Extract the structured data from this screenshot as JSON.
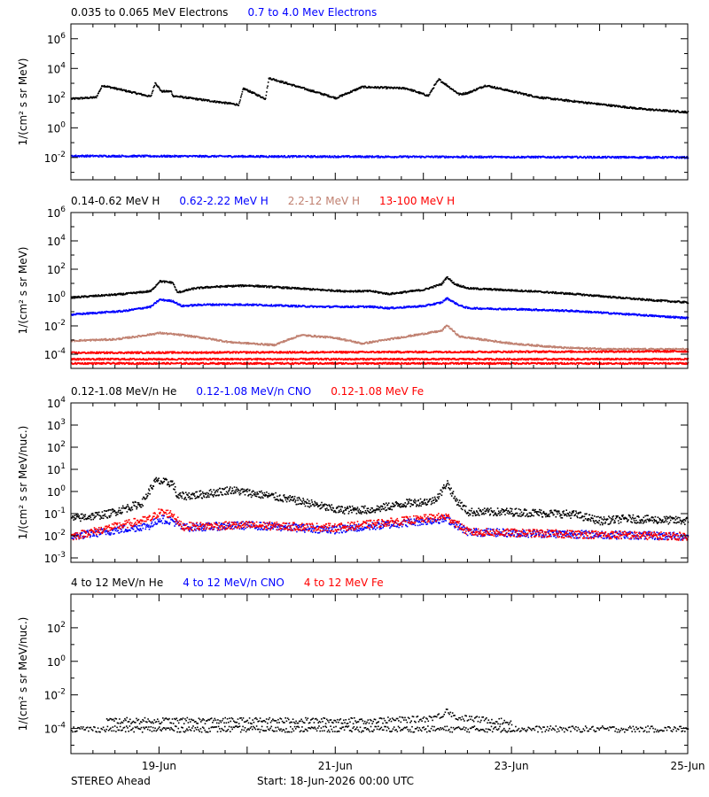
{
  "footer": {
    "spacecraft": "STEREO Ahead",
    "start": "Start: 18-Jun-2026 00:00 UTC"
  },
  "chart_data": [
    {
      "type": "scatter",
      "ylabel": "1/(cm² s sr MeV)",
      "yscale": "log",
      "ylim_exp": [
        -3.5,
        7
      ],
      "ytick_exps": [
        -2,
        0,
        2,
        4,
        6
      ],
      "x_days": [
        0,
        7
      ],
      "legend": [
        {
          "label": "0.035 to 0.065 MeV Electrons",
          "color": "#000000"
        },
        {
          "label": "0.7 to 4.0 Mev Electrons",
          "color": "#0000ff"
        }
      ],
      "series": [
        {
          "color": "#000000",
          "profile": [
            [
              0,
              2.0
            ],
            [
              0.28,
              2.1
            ],
            [
              0.35,
              2.9
            ],
            [
              0.9,
              2.15
            ],
            [
              0.95,
              3.1
            ],
            [
              1.02,
              2.5
            ],
            [
              1.13,
              2.5
            ],
            [
              1.15,
              2.2
            ],
            [
              1.9,
              1.6
            ],
            [
              1.95,
              2.7
            ],
            [
              2.2,
              2.0
            ],
            [
              2.24,
              3.4
            ],
            [
              3.0,
              2.05
            ],
            [
              3.3,
              2.8
            ],
            [
              3.8,
              2.7
            ],
            [
              4.05,
              2.2
            ],
            [
              4.12,
              2.9
            ],
            [
              4.17,
              3.3
            ],
            [
              4.4,
              2.3
            ],
            [
              4.5,
              2.4
            ],
            [
              4.7,
              2.9
            ],
            [
              5.3,
              2.1
            ],
            [
              6.2,
              1.5
            ],
            [
              6.5,
              1.3
            ],
            [
              7,
              1.1
            ]
          ]
        },
        {
          "color": "#0000ff",
          "profile": [
            [
              0,
              -1.85
            ],
            [
              7,
              -1.95
            ]
          ]
        }
      ]
    },
    {
      "type": "scatter",
      "ylabel": "1/(cm² s sr MeV)",
      "yscale": "log",
      "ylim_exp": [
        -5,
        6
      ],
      "ytick_exps": [
        -4,
        -2,
        0,
        2,
        4,
        6
      ],
      "x_days": [
        0,
        7
      ],
      "legend": [
        {
          "label": "0.14-0.62 MeV H",
          "color": "#000000"
        },
        {
          "label": "0.62-2.22 MeV H",
          "color": "#0000ff"
        },
        {
          "label": "2.2-12 MeV H",
          "color": "#c08070"
        },
        {
          "label": "13-100 MeV H",
          "color": "#ff0000"
        }
      ],
      "series": [
        {
          "color": "#000000",
          "profile": [
            [
              0,
              0.05
            ],
            [
              0.6,
              0.3
            ],
            [
              0.9,
              0.5
            ],
            [
              1.0,
              1.2
            ],
            [
              1.15,
              1.1
            ],
            [
              1.2,
              0.4
            ],
            [
              1.4,
              0.7
            ],
            [
              1.6,
              0.8
            ],
            [
              2.0,
              0.9
            ],
            [
              2.8,
              0.6
            ],
            [
              3.1,
              0.5
            ],
            [
              3.4,
              0.5
            ],
            [
              3.6,
              0.3
            ],
            [
              4.0,
              0.6
            ],
            [
              4.2,
              1.0
            ],
            [
              4.26,
              1.5
            ],
            [
              4.35,
              1.0
            ],
            [
              4.5,
              0.7
            ],
            [
              5.2,
              0.5
            ],
            [
              5.7,
              0.3
            ],
            [
              6.5,
              -0.1
            ],
            [
              7,
              -0.3
            ]
          ]
        },
        {
          "color": "#0000ff",
          "profile": [
            [
              0,
              -1.15
            ],
            [
              0.6,
              -0.9
            ],
            [
              0.9,
              -0.6
            ],
            [
              1.0,
              -0.1
            ],
            [
              1.15,
              -0.2
            ],
            [
              1.25,
              -0.55
            ],
            [
              1.5,
              -0.45
            ],
            [
              2.0,
              -0.45
            ],
            [
              2.8,
              -0.6
            ],
            [
              3.4,
              -0.6
            ],
            [
              3.6,
              -0.7
            ],
            [
              4.0,
              -0.55
            ],
            [
              4.2,
              -0.3
            ],
            [
              4.26,
              0.0
            ],
            [
              4.4,
              -0.5
            ],
            [
              4.5,
              -0.7
            ],
            [
              5.2,
              -0.8
            ],
            [
              5.7,
              -0.9
            ],
            [
              6.5,
              -1.2
            ],
            [
              7,
              -1.4
            ]
          ]
        },
        {
          "color": "#c08070",
          "profile": [
            [
              0,
              -3.0
            ],
            [
              0.5,
              -2.9
            ],
            [
              0.8,
              -2.65
            ],
            [
              1.0,
              -2.45
            ],
            [
              1.25,
              -2.6
            ],
            [
              1.5,
              -2.8
            ],
            [
              1.8,
              -3.1
            ],
            [
              2.3,
              -3.3
            ],
            [
              2.6,
              -2.6
            ],
            [
              3.0,
              -2.8
            ],
            [
              3.3,
              -3.2
            ],
            [
              3.7,
              -2.8
            ],
            [
              4.0,
              -2.5
            ],
            [
              4.2,
              -2.3
            ],
            [
              4.26,
              -1.9
            ],
            [
              4.4,
              -2.7
            ],
            [
              5.0,
              -3.2
            ],
            [
              5.6,
              -3.5
            ],
            [
              6.2,
              -3.6
            ],
            [
              7,
              -3.6
            ]
          ]
        },
        {
          "color": "#ff0000",
          "profile": [
            [
              0,
              -3.85
            ],
            [
              7,
              -3.75
            ]
          ]
        },
        {
          "color": "#ff0000",
          "profile": [
            [
              0,
              -4.3
            ],
            [
              7,
              -4.3
            ]
          ]
        },
        {
          "color": "#ff0000",
          "profile": [
            [
              0,
              -4.6
            ],
            [
              7,
              -4.6
            ]
          ]
        }
      ]
    },
    {
      "type": "scatter",
      "ylabel": "1/(cm² s sr MeV/nuc.)",
      "yscale": "log",
      "ylim_exp": [
        -3.2,
        4
      ],
      "ytick_exps": [
        -3,
        -2,
        -1,
        0,
        1,
        2,
        3,
        4
      ],
      "x_days": [
        0,
        7
      ],
      "legend": [
        {
          "label": "0.12-1.08 MeV/n He",
          "color": "#000000"
        },
        {
          "label": "0.12-1.08 MeV/n CNO",
          "color": "#0000ff"
        },
        {
          "label": "0.12-1.08 MeV Fe",
          "color": "#ff0000"
        }
      ],
      "series": [
        {
          "color": "#000000",
          "profile": [
            [
              0,
              -1.2
            ],
            [
              0.4,
              -1.0
            ],
            [
              0.8,
              -0.5
            ],
            [
              0.95,
              0.5
            ],
            [
              1.15,
              0.4
            ],
            [
              1.2,
              -0.2
            ],
            [
              1.5,
              -0.1
            ],
            [
              1.8,
              0.1
            ],
            [
              2.3,
              -0.2
            ],
            [
              2.7,
              -0.5
            ],
            [
              3.0,
              -0.8
            ],
            [
              3.4,
              -0.8
            ],
            [
              3.8,
              -0.5
            ],
            [
              4.1,
              -0.4
            ],
            [
              4.2,
              0.0
            ],
            [
              4.26,
              0.45
            ],
            [
              4.35,
              -0.3
            ],
            [
              4.5,
              -0.9
            ],
            [
              5.0,
              -0.9
            ],
            [
              5.7,
              -1.0
            ],
            [
              6.0,
              -1.3
            ],
            [
              6.3,
              -1.2
            ],
            [
              7,
              -1.3
            ]
          ]
        },
        {
          "color": "#0000ff",
          "profile": [
            [
              0,
              -2.0
            ],
            [
              0.9,
              -1.5
            ],
            [
              1.0,
              -1.2
            ],
            [
              1.15,
              -1.3
            ],
            [
              1.25,
              -1.6
            ],
            [
              2.0,
              -1.5
            ],
            [
              3.0,
              -1.7
            ],
            [
              4.26,
              -1.2
            ],
            [
              4.5,
              -1.8
            ],
            [
              7,
              -2.0
            ]
          ]
        },
        {
          "color": "#ff0000",
          "profile": [
            [
              0,
              -2.0
            ],
            [
              0.9,
              -1.2
            ],
            [
              1.0,
              -0.9
            ],
            [
              1.15,
              -1.0
            ],
            [
              1.25,
              -1.55
            ],
            [
              2.0,
              -1.5
            ],
            [
              3.0,
              -1.6
            ],
            [
              4.26,
              -1.1
            ],
            [
              4.5,
              -1.8
            ],
            [
              7,
              -2.0
            ]
          ]
        }
      ]
    },
    {
      "type": "scatter",
      "ylabel": "1/(cm² s sr MeV/nuc.)",
      "yscale": "log",
      "ylim_exp": [
        -5.5,
        4
      ],
      "ytick_exps": [
        -4,
        -2,
        0,
        2
      ],
      "x_days": [
        0,
        7
      ],
      "legend": [
        {
          "label": "4 to 12 MeV/n He",
          "color": "#000000"
        },
        {
          "label": "4 to 12 MeV/n CNO",
          "color": "#0000ff"
        },
        {
          "label": "4 to 12 MeV Fe",
          "color": "#ff0000"
        }
      ],
      "series": [
        {
          "color": "#000000",
          "profile": [
            [
              0,
              -4.0
            ],
            [
              7,
              -4.0
            ]
          ]
        },
        {
          "color": "#000000",
          "profile": [
            [
              0.4,
              -3.5
            ],
            [
              1.2,
              -3.5
            ],
            [
              3.4,
              -3.5
            ],
            [
              4.0,
              -3.4
            ],
            [
              4.2,
              -3.2
            ],
            [
              4.26,
              -2.8
            ],
            [
              4.35,
              -3.3
            ],
            [
              5.0,
              -3.6
            ]
          ]
        }
      ]
    }
  ],
  "x_axis": {
    "tick_days": [
      1,
      3,
      5,
      7
    ],
    "tick_labels": [
      "19-Jun",
      "21-Jun",
      "23-Jun",
      "25-Jun"
    ],
    "minor_step_days": 0.25
  }
}
